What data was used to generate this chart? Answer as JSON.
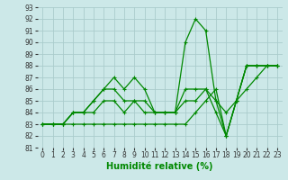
{
  "xlabel": "Humidité relative (%)",
  "background_color": "#cce8e8",
  "grid_color": "#aacccc",
  "line_color": "#008800",
  "xlim": [
    -0.5,
    23.5
  ],
  "ylim": [
    81,
    93
  ],
  "yticks": [
    81,
    82,
    83,
    84,
    85,
    86,
    87,
    88,
    89,
    90,
    91,
    92,
    93
  ],
  "xticks": [
    0,
    1,
    2,
    3,
    4,
    5,
    6,
    7,
    8,
    9,
    10,
    11,
    12,
    13,
    14,
    15,
    16,
    17,
    18,
    19,
    20,
    21,
    22,
    23
  ],
  "series": [
    {
      "x": [
        0,
        1,
        2,
        3,
        4,
        5,
        6,
        7,
        8,
        9,
        10,
        11,
        12,
        13,
        14,
        15,
        16,
        17,
        18,
        19,
        20,
        21,
        22,
        23
      ],
      "y": [
        83,
        83,
        83,
        84,
        84,
        85,
        86,
        87,
        86,
        87,
        86,
        84,
        84,
        84,
        90,
        92,
        91,
        85,
        82,
        85,
        88,
        88,
        88,
        88
      ]
    },
    {
      "x": [
        0,
        1,
        2,
        3,
        4,
        5,
        6,
        7,
        8,
        9,
        10,
        11,
        12,
        13,
        14,
        15,
        16,
        17,
        18,
        19,
        20,
        21,
        22,
        23
      ],
      "y": [
        83,
        83,
        83,
        84,
        84,
        85,
        86,
        86,
        85,
        85,
        85,
        84,
        84,
        84,
        86,
        86,
        86,
        84,
        82,
        85,
        88,
        88,
        88,
        88
      ]
    },
    {
      "x": [
        0,
        1,
        2,
        3,
        4,
        5,
        6,
        7,
        8,
        9,
        10,
        11,
        12,
        13,
        14,
        15,
        16,
        17,
        18,
        19,
        20,
        21,
        22,
        23
      ],
      "y": [
        83,
        83,
        83,
        84,
        84,
        84,
        85,
        85,
        84,
        85,
        84,
        84,
        84,
        84,
        85,
        85,
        86,
        85,
        84,
        85,
        86,
        87,
        88,
        88
      ]
    },
    {
      "x": [
        0,
        1,
        2,
        3,
        4,
        5,
        6,
        7,
        8,
        9,
        10,
        11,
        12,
        13,
        14,
        15,
        16,
        17,
        18,
        19,
        20,
        21,
        22,
        23
      ],
      "y": [
        83,
        83,
        83,
        83,
        83,
        83,
        83,
        83,
        83,
        83,
        83,
        83,
        83,
        83,
        83,
        84,
        85,
        86,
        82,
        85,
        88,
        88,
        88,
        88
      ]
    }
  ],
  "tick_fontsize": 5.5,
  "xlabel_fontsize": 7
}
